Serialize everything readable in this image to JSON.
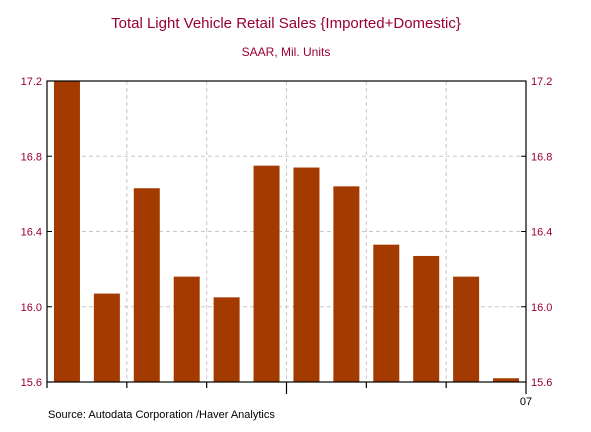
{
  "chart_data": {
    "type": "bar",
    "title": "Total Light Vehicle Retail Sales {Imported+Domestic}",
    "subtitle": "SAAR, Mil. Units",
    "xlabel": "",
    "ylabel": "",
    "ylim": [
      15.6,
      17.2
    ],
    "yticks": [
      "15.6",
      "16.0",
      "16.4",
      "16.8",
      "17.2"
    ],
    "y_axis_sides": "left-and-right",
    "x_tick_label": "07",
    "grid": true,
    "values": [
      17.2,
      16.07,
      16.63,
      16.16,
      16.05,
      16.75,
      16.74,
      16.64,
      16.33,
      16.27,
      16.16,
      15.62
    ],
    "source": "Source:  Autodata Corporation /Haver Analytics",
    "colors": {
      "bar": "#a33b00",
      "title": "#990033",
      "axis_text": "#990033",
      "grid": "#c8c8c8",
      "axis": "#000000"
    }
  }
}
